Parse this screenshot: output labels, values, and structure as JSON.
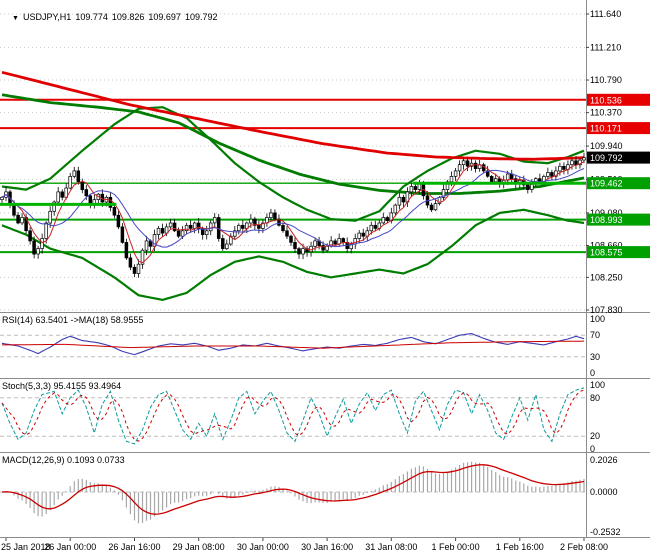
{
  "chart_data": {
    "type": "candlestick",
    "symbol": "USDJPY",
    "timeframe": "H1",
    "header": {
      "dropdown_icon": "▼",
      "symbol": "USDJPY,H1",
      "open": "109.774",
      "high": "109.826",
      "low": "109.697",
      "close": "109.792"
    },
    "y_axis": {
      "ticks": [
        "111.640",
        "111.210",
        "110.790",
        "110.370",
        "109.940",
        "109.510",
        "109.080",
        "108.660",
        "108.250",
        "107.830"
      ]
    },
    "x_axis": {
      "labels": [
        {
          "bar": 1,
          "text": "25 Jan 2018"
        },
        {
          "bar": 17,
          "text": "26 Jan 00:00"
        },
        {
          "bar": 33,
          "text": "26 Jan 16:00"
        },
        {
          "bar": 49,
          "text": "29 Jan 08:00"
        },
        {
          "bar": 65,
          "text": "30 Jan 00:00"
        },
        {
          "bar": 81,
          "text": "30 Jan 16:00"
        },
        {
          "bar": 97,
          "text": "31 Jan 08:00"
        },
        {
          "bar": 113,
          "text": "1 Feb 00:00"
        },
        {
          "bar": 129,
          "text": "1 Feb 16:00"
        },
        {
          "bar": 145,
          "text": "2 Feb 08:00"
        }
      ]
    },
    "hlines": [
      {
        "price": 110.536,
        "label": "110.536",
        "color": "#e60000",
        "width": 2
      },
      {
        "price": 110.171,
        "label": "110.171",
        "color": "#e60000",
        "width": 2
      },
      {
        "price": 109.462,
        "label": "109.462",
        "color": "#00a000",
        "width": 1.4
      },
      {
        "price": 108.993,
        "label": "108.993",
        "color": "#00a000",
        "width": 2
      },
      {
        "price": 108.575,
        "label": "108.575",
        "color": "#00a000",
        "width": 2
      }
    ],
    "current_price": {
      "value": 109.792,
      "label": "109.792",
      "box_color": "#000000"
    },
    "segments": [
      {
        "price": 109.19,
        "from_bar": 0,
        "to_bar": 29,
        "color": "#00b400",
        "width": 3
      },
      {
        "price": 109.462,
        "from_bar": 103,
        "to_bar": 146,
        "color": "#00b400",
        "width": 3
      }
    ],
    "first_open": 109.25,
    "closes": [
      109.28,
      109.35,
      109.18,
      109.05,
      108.95,
      109.02,
      108.85,
      108.72,
      108.55,
      108.62,
      108.75,
      108.95,
      109.1,
      109.22,
      109.35,
      109.28,
      109.4,
      109.55,
      109.62,
      109.48,
      109.38,
      109.3,
      109.2,
      109.25,
      109.32,
      109.22,
      109.28,
      109.15,
      109.05,
      108.9,
      108.7,
      108.5,
      108.38,
      108.3,
      108.42,
      108.6,
      108.72,
      108.65,
      108.8,
      108.88,
      108.82,
      108.9,
      108.95,
      108.85,
      108.78,
      108.85,
      108.92,
      108.88,
      108.95,
      108.88,
      108.8,
      108.85,
      108.95,
      109.02,
      108.75,
      108.62,
      108.68,
      108.78,
      108.85,
      108.92,
      108.88,
      108.95,
      109.0,
      108.92,
      108.88,
      108.95,
      109.02,
      109.08,
      109.0,
      108.92,
      108.85,
      108.78,
      108.7,
      108.62,
      108.55,
      108.62,
      108.58,
      108.65,
      108.72,
      108.66,
      108.6,
      108.65,
      108.72,
      108.68,
      108.75,
      108.7,
      108.62,
      108.68,
      108.75,
      108.82,
      108.78,
      108.85,
      108.92,
      108.88,
      108.95,
      109.02,
      108.98,
      109.08,
      109.18,
      109.28,
      109.22,
      109.35,
      109.42,
      109.38,
      109.45,
      109.3,
      109.18,
      109.12,
      109.2,
      109.28,
      109.38,
      109.48,
      109.55,
      109.62,
      109.7,
      109.75,
      109.68,
      109.72,
      109.65,
      109.7,
      109.62,
      109.55,
      109.48,
      109.52,
      109.45,
      109.5,
      109.58,
      109.52,
      109.46,
      109.5,
      109.44,
      109.38,
      109.45,
      109.52,
      109.48,
      109.55,
      109.6,
      109.55,
      109.62,
      109.68,
      109.64,
      109.7,
      109.75,
      109.7,
      109.76,
      109.79
    ],
    "overlays": {
      "red_ma": [
        [
          0,
          110.89
        ],
        [
          16,
          110.68
        ],
        [
          32,
          110.47
        ],
        [
          48,
          110.3
        ],
        [
          64,
          110.13
        ],
        [
          80,
          109.97
        ],
        [
          96,
          109.85
        ],
        [
          108,
          109.8
        ],
        [
          120,
          109.78
        ],
        [
          132,
          109.77
        ],
        [
          145,
          109.79
        ]
      ],
      "green_ma": [
        [
          0,
          110.6
        ],
        [
          12,
          110.5
        ],
        [
          24,
          110.44
        ],
        [
          34,
          110.38
        ],
        [
          44,
          110.24
        ],
        [
          54,
          109.98
        ],
        [
          64,
          109.76
        ],
        [
          74,
          109.58
        ],
        [
          84,
          109.45
        ],
        [
          94,
          109.37
        ],
        [
          104,
          109.33
        ],
        [
          114,
          109.33
        ],
        [
          124,
          109.36
        ],
        [
          134,
          109.42
        ],
        [
          145,
          109.53
        ]
      ],
      "bb_upper": [
        [
          0,
          109.42
        ],
        [
          6,
          109.38
        ],
        [
          12,
          109.52
        ],
        [
          20,
          109.88
        ],
        [
          28,
          110.22
        ],
        [
          34,
          110.42
        ],
        [
          40,
          110.44
        ],
        [
          46,
          110.3
        ],
        [
          52,
          110.02
        ],
        [
          58,
          109.72
        ],
        [
          64,
          109.48
        ],
        [
          70,
          109.28
        ],
        [
          76,
          109.12
        ],
        [
          82,
          109.0
        ],
        [
          88,
          108.98
        ],
        [
          94,
          109.1
        ],
        [
          100,
          109.42
        ],
        [
          106,
          109.62
        ],
        [
          112,
          109.78
        ],
        [
          118,
          109.88
        ],
        [
          124,
          109.84
        ],
        [
          130,
          109.74
        ],
        [
          136,
          109.72
        ],
        [
          141,
          109.8
        ],
        [
          145,
          109.88
        ]
      ],
      "bb_lower": [
        [
          0,
          108.92
        ],
        [
          6,
          108.8
        ],
        [
          12,
          108.62
        ],
        [
          20,
          108.5
        ],
        [
          28,
          108.25
        ],
        [
          34,
          108.02
        ],
        [
          40,
          107.96
        ],
        [
          46,
          108.05
        ],
        [
          52,
          108.28
        ],
        [
          58,
          108.45
        ],
        [
          64,
          108.52
        ],
        [
          70,
          108.45
        ],
        [
          76,
          108.32
        ],
        [
          82,
          108.25
        ],
        [
          88,
          108.3
        ],
        [
          94,
          108.35
        ],
        [
          100,
          108.3
        ],
        [
          106,
          108.42
        ],
        [
          112,
          108.65
        ],
        [
          118,
          108.92
        ],
        [
          124,
          109.08
        ],
        [
          130,
          109.12
        ],
        [
          136,
          109.05
        ],
        [
          141,
          108.98
        ],
        [
          145,
          108.95
        ]
      ]
    },
    "overlay_colors": {
      "red_ma": "#e00000",
      "green_ma": "#007d00",
      "bb_upper": "#007d00",
      "bb_lower": "#007d00"
    },
    "indicators": {
      "rsi": {
        "label": "RSI(14) 63.5401 ->MA(18) 58.9555",
        "ticks": [
          "100",
          "70",
          "30",
          "0"
        ],
        "levels": [
          70,
          30
        ],
        "colors": {
          "main": "#3c3cb4",
          "signal": "#cc0000"
        },
        "main": [
          [
            0,
            55
          ],
          [
            4,
            50
          ],
          [
            7,
            42
          ],
          [
            9,
            36
          ],
          [
            12,
            48
          ],
          [
            15,
            62
          ],
          [
            17,
            68
          ],
          [
            20,
            60
          ],
          [
            24,
            56
          ],
          [
            27,
            50
          ],
          [
            30,
            40
          ],
          [
            33,
            34
          ],
          [
            36,
            42
          ],
          [
            39,
            50
          ],
          [
            42,
            54
          ],
          [
            45,
            52
          ],
          [
            48,
            55
          ],
          [
            51,
            50
          ],
          [
            54,
            42
          ],
          [
            57,
            46
          ],
          [
            60,
            52
          ],
          [
            63,
            50
          ],
          [
            66,
            55
          ],
          [
            69,
            50
          ],
          [
            72,
            46
          ],
          [
            75,
            41
          ],
          [
            78,
            45
          ],
          [
            81,
            48
          ],
          [
            84,
            46
          ],
          [
            87,
            50
          ],
          [
            90,
            53
          ],
          [
            93,
            51
          ],
          [
            96,
            55
          ],
          [
            99,
            62
          ],
          [
            102,
            66
          ],
          [
            105,
            58
          ],
          [
            108,
            54
          ],
          [
            111,
            62
          ],
          [
            114,
            70
          ],
          [
            117,
            73
          ],
          [
            120,
            64
          ],
          [
            123,
            57
          ],
          [
            126,
            53
          ],
          [
            129,
            58
          ],
          [
            132,
            55
          ],
          [
            135,
            52
          ],
          [
            138,
            58
          ],
          [
            141,
            63
          ],
          [
            143,
            68
          ],
          [
            145,
            63.5
          ]
        ],
        "signal": [
          [
            0,
            52
          ],
          [
            16,
            53
          ],
          [
            32,
            47
          ],
          [
            48,
            50
          ],
          [
            64,
            50
          ],
          [
            80,
            46
          ],
          [
            96,
            51
          ],
          [
            112,
            56
          ],
          [
            128,
            58
          ],
          [
            145,
            59
          ]
        ]
      },
      "stoch": {
        "label": "Stoch(5,3,3) 95.4155 93.4964",
        "ticks": [
          "100",
          "80",
          "20",
          "0"
        ],
        "levels": [
          80,
          20
        ],
        "colors": {
          "main": "#0f9b9b",
          "signal": "#cc0000"
        },
        "main": [
          [
            0,
            72
          ],
          [
            2,
            40
          ],
          [
            4,
            15
          ],
          [
            6,
            25
          ],
          [
            8,
            60
          ],
          [
            10,
            85
          ],
          [
            13,
            90
          ],
          [
            15,
            55
          ],
          [
            17,
            80
          ],
          [
            19,
            92
          ],
          [
            21,
            65
          ],
          [
            23,
            25
          ],
          [
            25,
            70
          ],
          [
            27,
            90
          ],
          [
            29,
            45
          ],
          [
            31,
            12
          ],
          [
            33,
            8
          ],
          [
            35,
            30
          ],
          [
            37,
            65
          ],
          [
            39,
            85
          ],
          [
            41,
            90
          ],
          [
            43,
            60
          ],
          [
            45,
            30
          ],
          [
            47,
            15
          ],
          [
            49,
            40
          ],
          [
            51,
            20
          ],
          [
            53,
            55
          ],
          [
            55,
            15
          ],
          [
            57,
            45
          ],
          [
            59,
            80
          ],
          [
            61,
            90
          ],
          [
            63,
            55
          ],
          [
            65,
            75
          ],
          [
            67,
            90
          ],
          [
            69,
            60
          ],
          [
            71,
            25
          ],
          [
            73,
            12
          ],
          [
            75,
            45
          ],
          [
            77,
            80
          ],
          [
            79,
            55
          ],
          [
            81,
            20
          ],
          [
            83,
            50
          ],
          [
            85,
            78
          ],
          [
            87,
            40
          ],
          [
            89,
            70
          ],
          [
            91,
            88
          ],
          [
            93,
            60
          ],
          [
            95,
            85
          ],
          [
            97,
            92
          ],
          [
            99,
            55
          ],
          [
            101,
            25
          ],
          [
            103,
            75
          ],
          [
            105,
            90
          ],
          [
            107,
            60
          ],
          [
            109,
            30
          ],
          [
            111,
            70
          ],
          [
            113,
            92
          ],
          [
            115,
            88
          ],
          [
            117,
            55
          ],
          [
            119,
            85
          ],
          [
            121,
            60
          ],
          [
            123,
            25
          ],
          [
            125,
            15
          ],
          [
            127,
            50
          ],
          [
            129,
            80
          ],
          [
            131,
            45
          ],
          [
            133,
            85
          ],
          [
            135,
            30
          ],
          [
            137,
            12
          ],
          [
            139,
            55
          ],
          [
            141,
            85
          ],
          [
            143,
            92
          ],
          [
            145,
            95.4
          ]
        ]
      },
      "macd": {
        "label": "MACD(12,26,9) 0.1093 0.0733",
        "ticks": [
          "0.2026",
          "0.0000",
          "-0.2532"
        ],
        "range_top": 0.2026,
        "range_bottom": -0.2532,
        "colors": {
          "hist": "#a8a8a8",
          "signal": "#cc0000"
        }
      }
    },
    "colors": {
      "background": "#ffffff",
      "grid": "#c9c9c9",
      "bull_candle": "#ffffff",
      "bear_candle": "#000000",
      "candle_outline": "#000000",
      "divider": "#8c8c8c",
      "level_line": "#bdbdbd"
    }
  }
}
